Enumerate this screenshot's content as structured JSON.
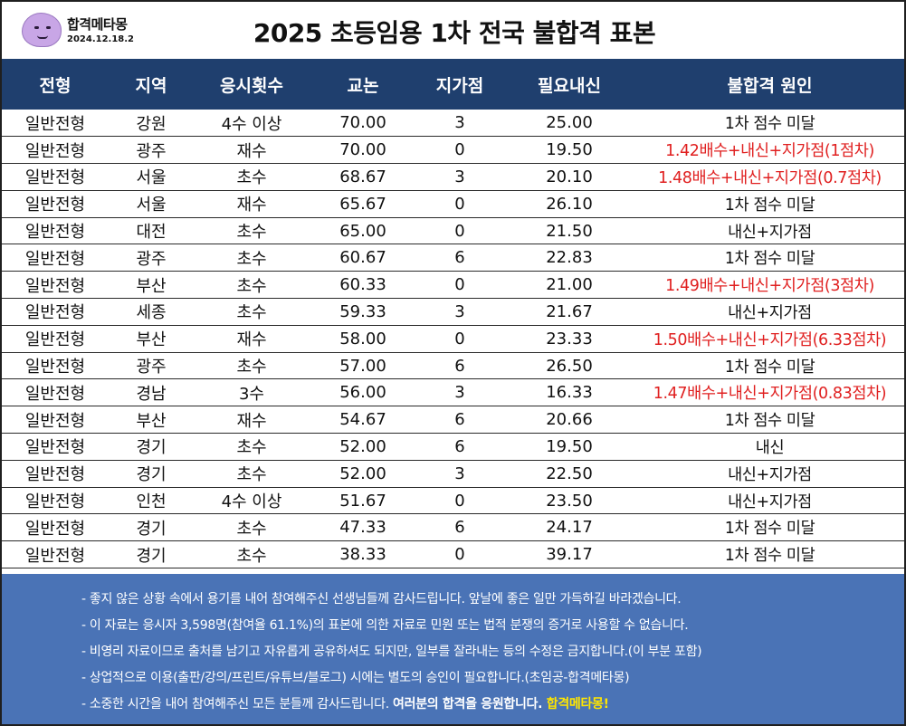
{
  "logo": {
    "name": "합격메타몽",
    "date": "2024.12.18.2",
    "icon": "ditto-mascot-icon"
  },
  "title": "2025 초등임용 1차 전국 불합격 표본",
  "table": {
    "headers": [
      "전형",
      "지역",
      "응시횟수",
      "교논",
      "지가점",
      "필요내신",
      "불합격 원인"
    ],
    "rows": [
      [
        "일반전형",
        "강원",
        "4수 이상",
        "70.00",
        "3",
        "25.00",
        "1차 점수 미달"
      ],
      [
        "일반전형",
        "광주",
        "재수",
        "70.00",
        "0",
        "19.50",
        "1.42배수+내신+지가점(1점차)"
      ],
      [
        "일반전형",
        "서울",
        "초수",
        "68.67",
        "3",
        "20.10",
        "1.48배수+내신+지가점(0.7점차)"
      ],
      [
        "일반전형",
        "서울",
        "재수",
        "65.67",
        "0",
        "26.10",
        "1차 점수 미달"
      ],
      [
        "일반전형",
        "대전",
        "초수",
        "65.00",
        "0",
        "21.50",
        "내신+지가점"
      ],
      [
        "일반전형",
        "광주",
        "초수",
        "60.67",
        "6",
        "22.83",
        "1차 점수 미달"
      ],
      [
        "일반전형",
        "부산",
        "초수",
        "60.33",
        "0",
        "21.00",
        "1.49배수+내신+지가점(3점차)"
      ],
      [
        "일반전형",
        "세종",
        "초수",
        "59.33",
        "3",
        "21.67",
        "내신+지가점"
      ],
      [
        "일반전형",
        "부산",
        "재수",
        "58.00",
        "0",
        "23.33",
        "1.50배수+내신+지가점(6.33점차)"
      ],
      [
        "일반전형",
        "광주",
        "초수",
        "57.00",
        "6",
        "26.50",
        "1차 점수 미달"
      ],
      [
        "일반전형",
        "경남",
        "3수",
        "56.00",
        "3",
        "16.33",
        "1.47배수+내신+지가점(0.83점차)"
      ],
      [
        "일반전형",
        "부산",
        "재수",
        "54.67",
        "6",
        "20.66",
        "1차 점수 미달"
      ],
      [
        "일반전형",
        "경기",
        "초수",
        "52.00",
        "6",
        "19.50",
        "내신"
      ],
      [
        "일반전형",
        "경기",
        "초수",
        "52.00",
        "3",
        "22.50",
        "내신+지가점"
      ],
      [
        "일반전형",
        "인천",
        "4수 이상",
        "51.67",
        "0",
        "23.50",
        "내신+지가점"
      ],
      [
        "일반전형",
        "경기",
        "초수",
        "47.33",
        "6",
        "24.17",
        "1차 점수 미달"
      ],
      [
        "일반전형",
        "경기",
        "초수",
        "38.33",
        "0",
        "39.17",
        "1차 점수 미달"
      ]
    ],
    "highlight_color": "#e02020"
  },
  "notes": [
    "- 좋지 않은 상황 속에서 용기를 내어 참여해주신 선생님들께 감사드립니다. 앞날에 좋은 일만 가득하길 바라겠습니다.",
    "- 이 자료는 응시자 3,598명(참여율 61.1%)의 표본에 의한 자료로 민원 또는 법적 분쟁의 증거로 사용할 수 없습니다.",
    "- 비영리 자료이므로 출처를 남기고 자유롭게 공유하셔도 되지만, 일부를 잘라내는 등의 수정은 금지합니다.(이 부분 포함)",
    "- 상업적으로 이용(출판/강의/프린트/유튜브/블로그) 시에는 별도의 승인이 필요합니다.(초임공-합격메타몽)"
  ],
  "last_note": {
    "plain": "- 소중한 시간을 내어 참여해주신 모든 분들께 감사드립니다. ",
    "bold": "여러분의 합격을 응원합니다. ",
    "highlight": "합격메타몽!"
  },
  "colors": {
    "header_bg": "#1f3f6e",
    "notes_bg": "#4a73b6",
    "highlight_text": "#ffe600"
  }
}
